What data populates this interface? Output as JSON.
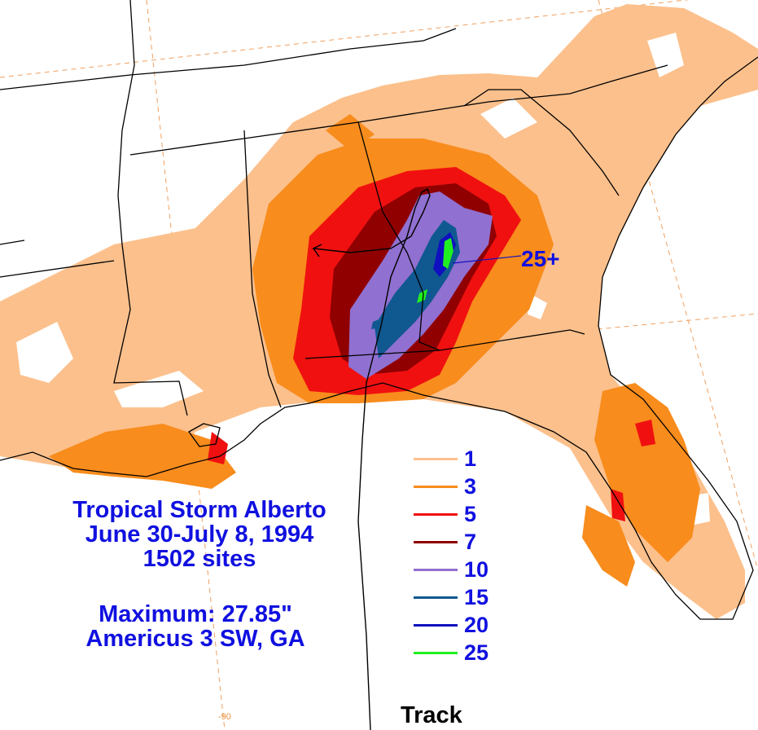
{
  "title": {
    "line1": "Tropical Storm Alberto",
    "line2": "June 30-July 8, 1994",
    "line3": "1502 sites"
  },
  "maximum": {
    "line1": "Maximum: 27.85\"",
    "line2": "Americus 3 SW, GA"
  },
  "peak_label": "25+",
  "track_label": "Track",
  "longitude_label": "-90",
  "legend": [
    {
      "label": "1",
      "color": "#fcc08c"
    },
    {
      "label": "3",
      "color": "#f88c1c"
    },
    {
      "label": "5",
      "color": "#f01010"
    },
    {
      "label": "7",
      "color": "#900000"
    },
    {
      "label": "10",
      "color": "#9070d0"
    },
    {
      "label": "15",
      "color": "#105890"
    },
    {
      "label": "20",
      "color": "#1010c0"
    },
    {
      "label": "25",
      "color": "#20f020"
    }
  ]
}
